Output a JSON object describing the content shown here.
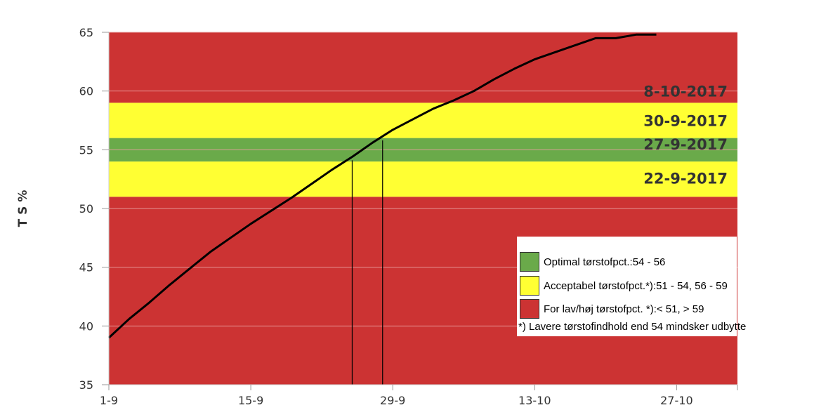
{
  "chart_data": {
    "type": "line",
    "ylabel": "T S %",
    "xlabel": "",
    "ylim": [
      35,
      65
    ],
    "yticks": [
      35,
      40,
      45,
      50,
      55,
      60,
      65
    ],
    "xlim": [
      0,
      62
    ],
    "xticks": [
      {
        "x": 0,
        "label": "1-9"
      },
      {
        "x": 14,
        "label": "15-9"
      },
      {
        "x": 28,
        "label": "29-9"
      },
      {
        "x": 42,
        "label": "13-10"
      },
      {
        "x": 56,
        "label": "27-10"
      }
    ],
    "grid": true,
    "bands": [
      {
        "from": 35,
        "to": 51,
        "color": "#cc3333"
      },
      {
        "from": 51,
        "to": 54,
        "color": "#ffff33"
      },
      {
        "from": 54,
        "to": 56,
        "color": "#6aaa4a"
      },
      {
        "from": 56,
        "to": 59,
        "color": "#ffff33"
      },
      {
        "from": 59,
        "to": 65,
        "color": "#cc3333"
      }
    ],
    "series": [
      {
        "color": "#000000",
        "points": [
          [
            0,
            39.0
          ],
          [
            2,
            40.6
          ],
          [
            4,
            42.0
          ],
          [
            6,
            43.5
          ],
          [
            8,
            44.9
          ],
          [
            10,
            46.3
          ],
          [
            12,
            47.5
          ],
          [
            14,
            48.7
          ],
          [
            16,
            49.8
          ],
          [
            18,
            50.9
          ],
          [
            20,
            52.1
          ],
          [
            22,
            53.3
          ],
          [
            24,
            54.4
          ],
          [
            26,
            55.6
          ],
          [
            28,
            56.7
          ],
          [
            30,
            57.6
          ],
          [
            32,
            58.5
          ],
          [
            34,
            59.2
          ],
          [
            36,
            60.0
          ],
          [
            38,
            61.0
          ],
          [
            40,
            61.9
          ],
          [
            42,
            62.7
          ],
          [
            44,
            63.3
          ],
          [
            46,
            63.9
          ],
          [
            48,
            64.5
          ],
          [
            50,
            64.5
          ],
          [
            52,
            64.8
          ],
          [
            54,
            64.8
          ]
        ]
      }
    ],
    "vlines": [
      {
        "x": 24,
        "y": 54.1
      },
      {
        "x": 27,
        "y": 55.8
      }
    ],
    "annotations": [
      {
        "label": "8-10-2017",
        "y": 60.0
      },
      {
        "label": "30-9-2017",
        "y": 57.5
      },
      {
        "label": "27-9-2017",
        "y": 55.5
      },
      {
        "label": "22-9-2017",
        "y": 52.6
      }
    ]
  },
  "legend": {
    "items": [
      {
        "label": "Optimal tørstofpct.:54 - 56",
        "color": "#6aaa4a"
      },
      {
        "label": "Acceptabel tørstofpct.*):51 - 54, 56 - 59",
        "color": "#ffff33"
      },
      {
        "label": "For lav/høj tørstofpct. *):< 51, > 59",
        "color": "#cc3333"
      }
    ],
    "note": "*) Lavere tørstofindhold end 54 mindsker udbytte"
  }
}
